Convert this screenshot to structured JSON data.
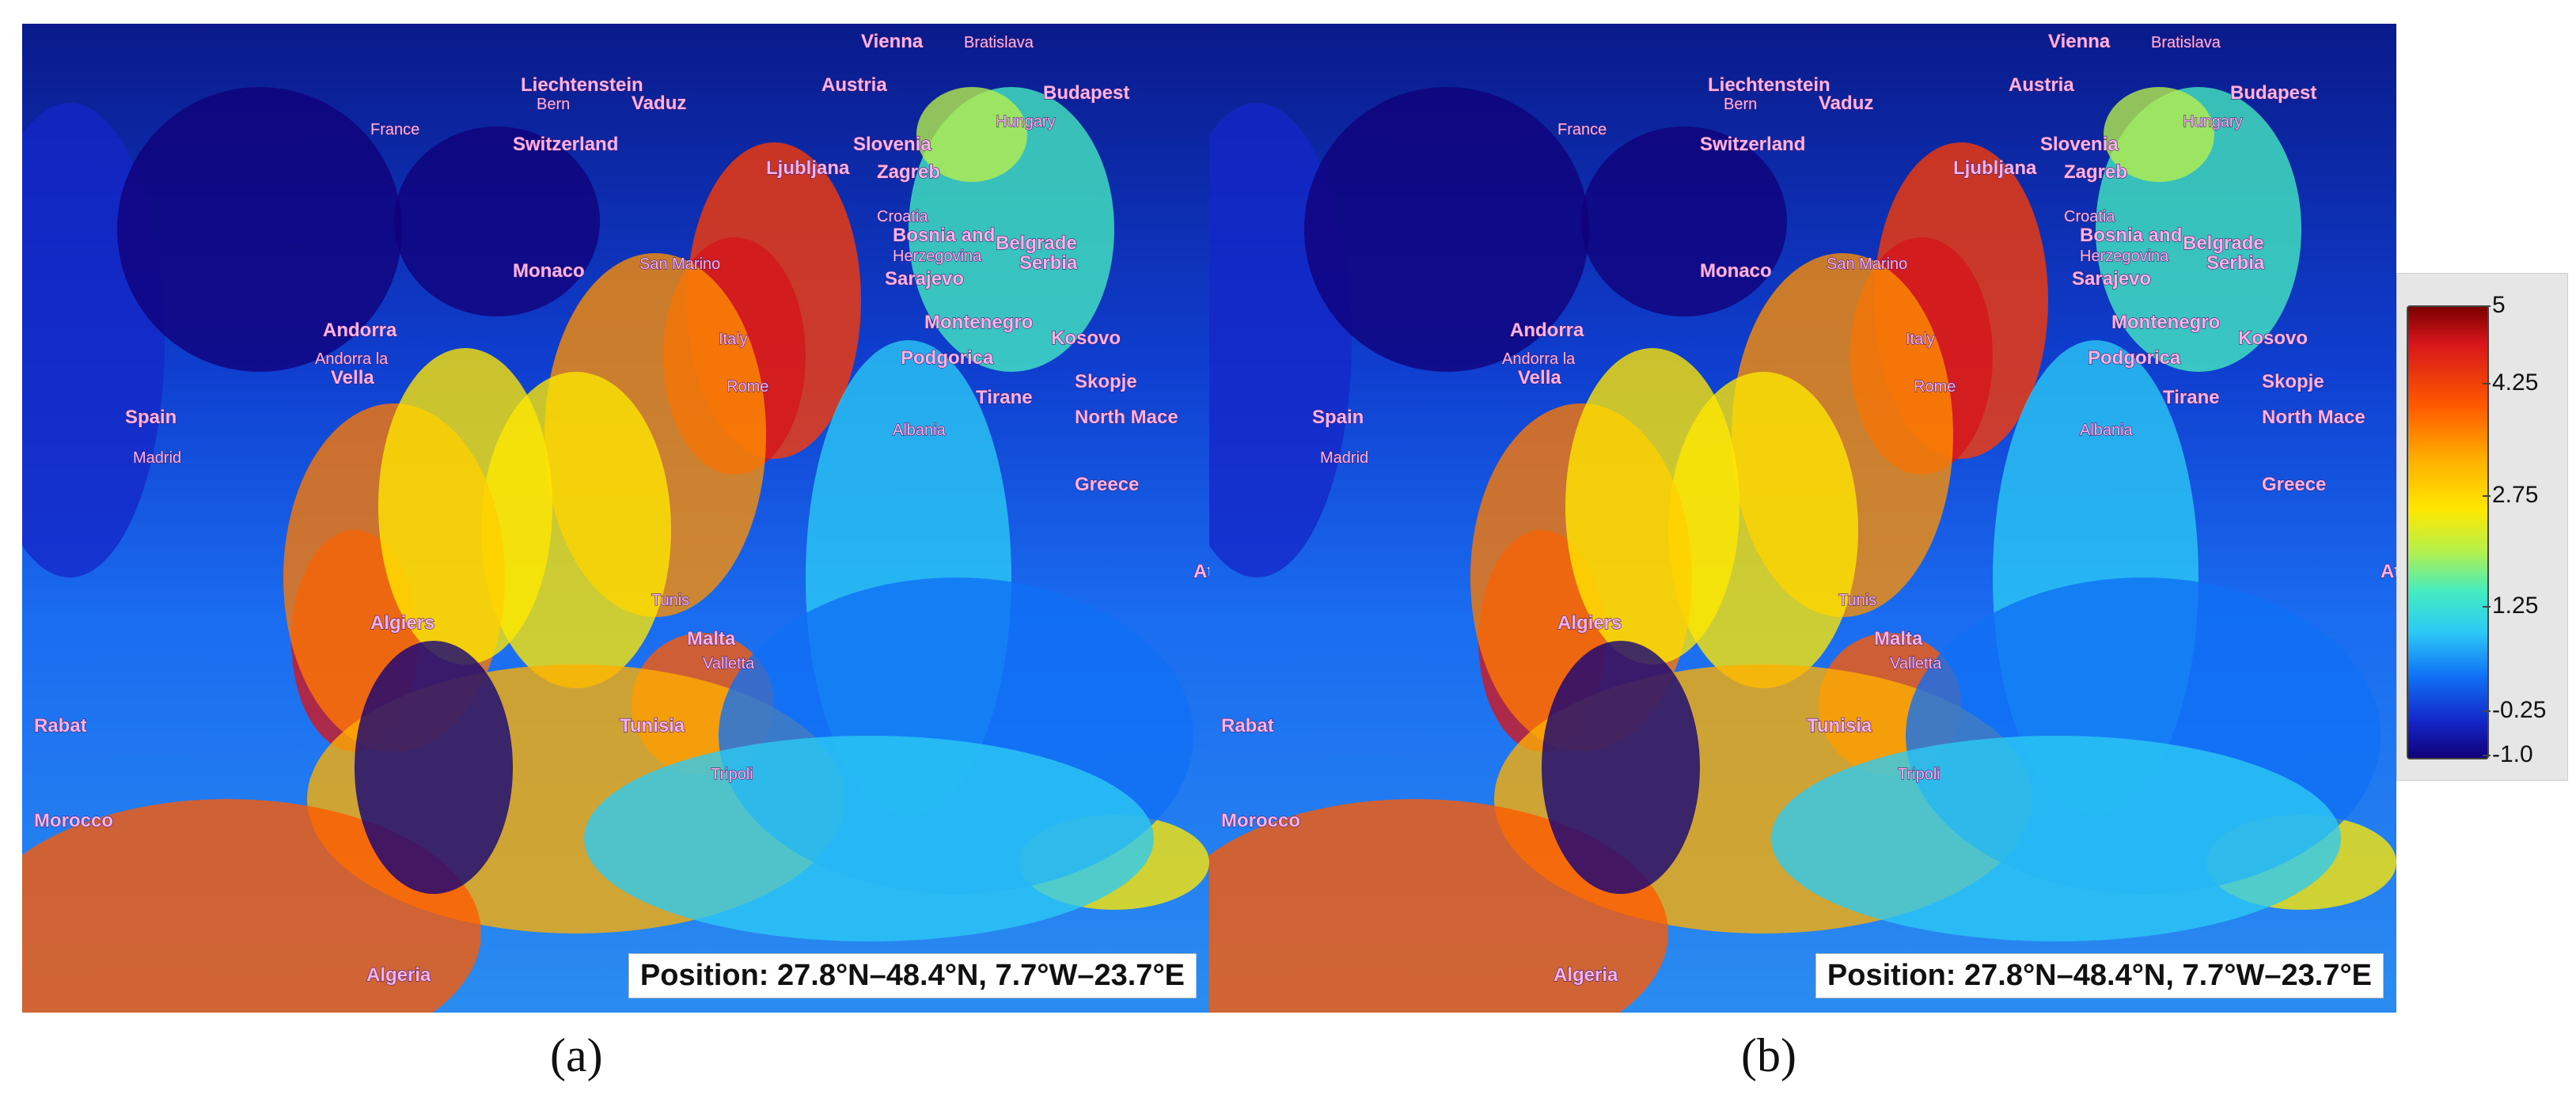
{
  "panels": [
    {
      "id": "a",
      "caption": "(a)",
      "position_text": "Position: 27.8°N–48.4°N, 7.7°W–23.7°E",
      "labels": [
        "Vienna",
        "Bratislava",
        "Budapest",
        "Liechtenstein",
        "Bern",
        "Vaduz",
        "Austria",
        "France",
        "Switzerland",
        "Slovenia",
        "Hungary",
        "Ljubljana",
        "Zagreb",
        "Croatia",
        "Belgrade",
        "Bosnia and",
        "Herzegovina",
        "Serbia",
        "Monaco",
        "San Marino",
        "Sarajevo",
        "Andorra",
        "Andorra la",
        "Vella",
        "Montenegro",
        "Italy",
        "Kosovo",
        "Podgorica",
        "Rome",
        "Skopje",
        "Spain",
        "Madrid",
        "Tirane",
        "North Mace",
        "Albania",
        "Greece",
        "Ath",
        "Tunis",
        "Algiers",
        "Malta",
        "Valletta",
        "Rabat",
        "Tunisia",
        "Tripoli",
        "Morocco",
        "Algeria"
      ]
    },
    {
      "id": "b",
      "caption": "(b)",
      "position_text": "Position: 27.8°N–48.4°N, 7.7°W–23.7°E",
      "labels": [
        "Vienna",
        "Bratislava",
        "Budapest",
        "Liechtenstein",
        "Bern",
        "Vaduz",
        "Austria",
        "France",
        "Switzerland",
        "Slovenia",
        "Hungary",
        "Ljubljana",
        "Zagreb",
        "Croatia",
        "Belgrade",
        "Bosnia and",
        "Herzegovina",
        "Serbia",
        "Monaco",
        "San Marino",
        "Sarajevo",
        "Andorra",
        "Andorra la",
        "Vella",
        "Montenegro",
        "Italy",
        "Kosovo",
        "Podgorica",
        "Rome",
        "Skopje",
        "Spain",
        "Madrid",
        "Tirane",
        "North Mace",
        "Albania",
        "Greece",
        "Ath",
        "Tunis",
        "Algiers",
        "Malta",
        "Valletta",
        "Rabat",
        "Tunisia",
        "Tripoli",
        "Morocco",
        "Algeria"
      ]
    }
  ],
  "colorbar": {
    "ticks": [
      "5",
      "4.25",
      "2.75",
      "1.25",
      "-0.25",
      "-1.0"
    ],
    "min": -1.0,
    "max": 5,
    "colors": [
      "#11007a",
      "#1426c8",
      "#1070f5",
      "#2ccaf5",
      "#45ecc0",
      "#b7f04a",
      "#ffe800",
      "#ffb000",
      "#ff5a00",
      "#d6151b",
      "#7a0000"
    ]
  }
}
